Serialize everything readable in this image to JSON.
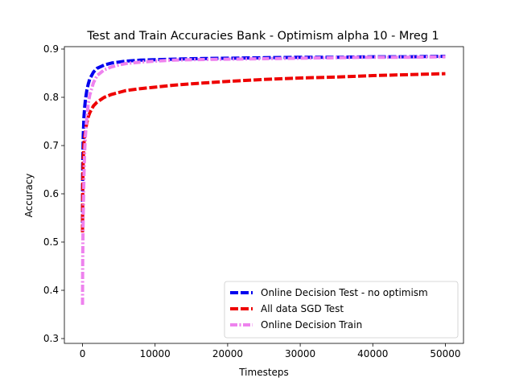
{
  "chart_data": {
    "type": "line",
    "title": "Test and Train Accuracies Bank - Optimism alpha 10 - Mreg 1",
    "xlabel": "Timesteps",
    "ylabel": "Accuracy",
    "xlim": [
      -2500,
      52500
    ],
    "ylim": [
      0.29,
      0.905
    ],
    "xticks": [
      0,
      10000,
      20000,
      30000,
      40000,
      50000
    ],
    "yticks": [
      0.3,
      0.4,
      0.5,
      0.6,
      0.7,
      0.8,
      0.9
    ],
    "grid": false,
    "legend_position": "lower-right",
    "x": [
      0,
      10,
      25,
      50,
      100,
      150,
      200,
      300,
      400,
      600,
      800,
      1000,
      1500,
      2000,
      3000,
      4000,
      5000,
      6000,
      8000,
      10000,
      12500,
      15000,
      20000,
      25000,
      30000,
      35000,
      40000,
      45000,
      50000
    ],
    "series": [
      {
        "name": "Online Decision Test - no optimism",
        "color": "#0000ee",
        "dash": "dashed",
        "values": [
          0.54,
          0.61,
          0.66,
          0.68,
          0.72,
          0.74,
          0.76,
          0.78,
          0.795,
          0.815,
          0.828,
          0.838,
          0.852,
          0.86,
          0.867,
          0.871,
          0.873,
          0.875,
          0.877,
          0.878,
          0.879,
          0.88,
          0.881,
          0.882,
          0.883,
          0.883,
          0.884,
          0.884,
          0.885
        ]
      },
      {
        "name": "All data SGD Test",
        "color": "#ee0000",
        "dash": "dashed",
        "values": [
          0.52,
          0.55,
          0.6,
          0.63,
          0.67,
          0.69,
          0.705,
          0.72,
          0.73,
          0.748,
          0.76,
          0.768,
          0.782,
          0.79,
          0.8,
          0.806,
          0.81,
          0.814,
          0.818,
          0.821,
          0.825,
          0.828,
          0.833,
          0.837,
          0.84,
          0.842,
          0.845,
          0.847,
          0.849
        ]
      },
      {
        "name": "Online Decision Train",
        "color": "#ee82ee",
        "dash": "dashdot",
        "values": [
          0.37,
          0.42,
          0.46,
          0.5,
          0.56,
          0.6,
          0.64,
          0.69,
          0.72,
          0.76,
          0.788,
          0.805,
          0.83,
          0.845,
          0.857,
          0.863,
          0.867,
          0.87,
          0.873,
          0.875,
          0.877,
          0.878,
          0.879,
          0.88,
          0.881,
          0.882,
          0.883,
          0.883,
          0.884
        ]
      }
    ]
  }
}
